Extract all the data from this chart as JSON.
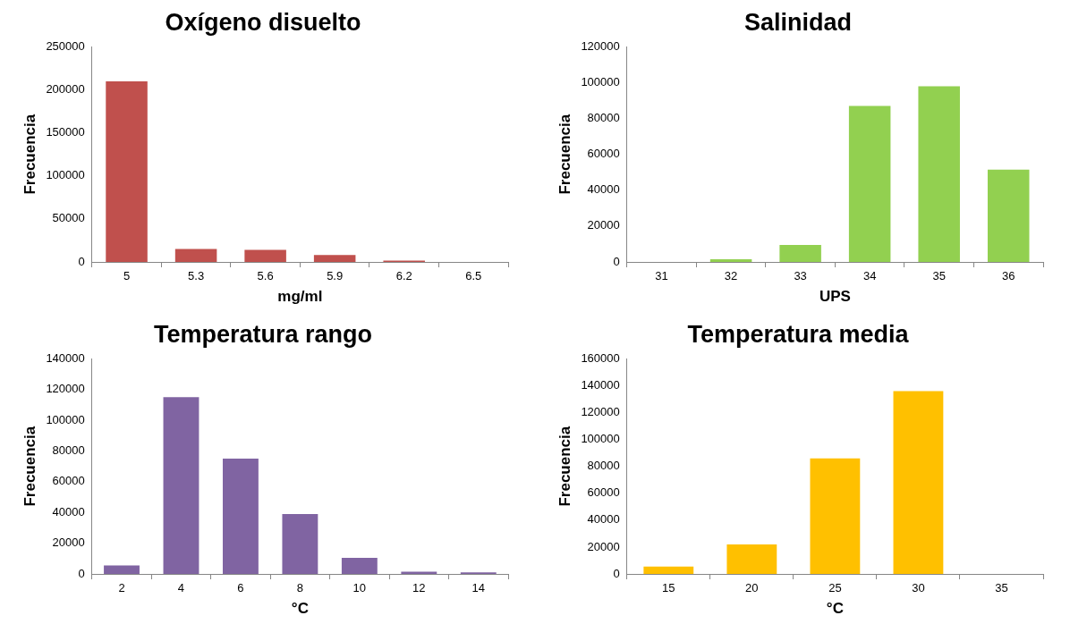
{
  "chart_data": [
    {
      "type": "bar",
      "title": "Oxígeno disuelto",
      "xlabel": "mg/ml",
      "ylabel": "Frecuencia",
      "categories": [
        "5",
        "5.3",
        "5.6",
        "5.9",
        "6.2",
        "6.5"
      ],
      "values": [
        210000,
        15000,
        14000,
        8000,
        1500,
        0
      ],
      "color": "#c0504d",
      "ylim": [
        0,
        250000
      ],
      "yticks": [
        0,
        50000,
        100000,
        150000,
        200000,
        250000
      ],
      "grid": false,
      "legend": false
    },
    {
      "type": "bar",
      "title": "Salinidad",
      "xlabel": "UPS",
      "ylabel": "Frecuencia",
      "categories": [
        "31",
        "32",
        "33",
        "34",
        "35",
        "36"
      ],
      "values": [
        0,
        1500,
        9500,
        87000,
        98000,
        51500
      ],
      "color": "#92d050",
      "ylim": [
        0,
        120000
      ],
      "yticks": [
        0,
        20000,
        40000,
        60000,
        80000,
        100000,
        120000
      ],
      "grid": false,
      "legend": false
    },
    {
      "type": "bar",
      "title": "Temperatura rango",
      "xlabel": "°C",
      "ylabel": "Frecuencia",
      "categories": [
        "2",
        "4",
        "6",
        "8",
        "10",
        "12",
        "14"
      ],
      "values": [
        5500,
        115000,
        75000,
        39000,
        10500,
        1500,
        1000
      ],
      "color": "#8064a2",
      "ylim": [
        0,
        140000
      ],
      "yticks": [
        0,
        20000,
        40000,
        60000,
        80000,
        100000,
        120000,
        140000
      ],
      "grid": false,
      "legend": false
    },
    {
      "type": "bar",
      "title": "Temperatura media",
      "xlabel": "°C",
      "ylabel": "Frecuencia",
      "categories": [
        "15",
        "20",
        "25",
        "30",
        "35"
      ],
      "values": [
        5500,
        22000,
        86000,
        136000,
        0
      ],
      "color": "#ffc000",
      "ylim": [
        0,
        160000
      ],
      "yticks": [
        0,
        20000,
        40000,
        60000,
        80000,
        100000,
        120000,
        140000,
        160000
      ],
      "grid": false,
      "legend": false
    }
  ]
}
